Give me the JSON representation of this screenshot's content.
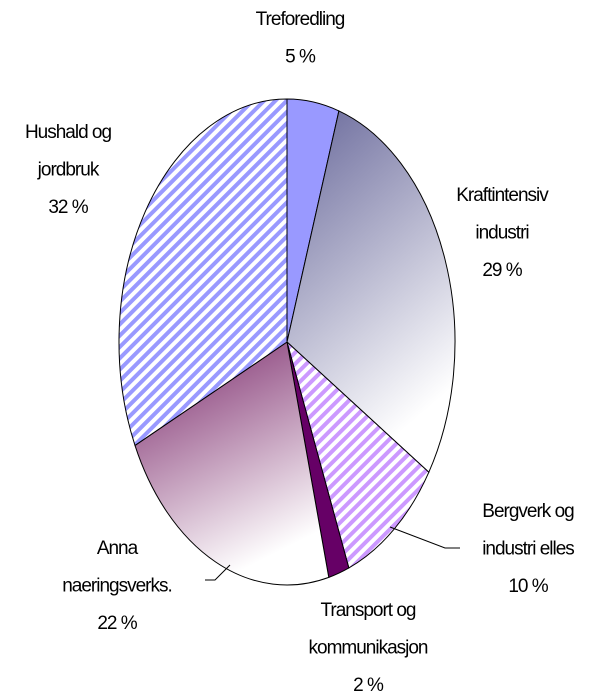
{
  "chart_data": {
    "type": "pie",
    "categories": [
      [
        "Treforedling"
      ],
      [
        "Kraftintensiv",
        "industri"
      ],
      [
        "Bergverk og",
        "industri elles"
      ],
      [
        "Transport og",
        "kommunikasjon"
      ],
      [
        "Anna",
        "naeringsverks."
      ],
      [
        "Hushald og",
        "jordbruk"
      ]
    ],
    "values": [
      5,
      29,
      10,
      2,
      22,
      32
    ],
    "value_labels": [
      "5 %",
      "29 %",
      "10 %",
      "2 %",
      "22 %",
      "32 %"
    ],
    "colors": [
      "#9999ff",
      "#666699",
      "#cc99ff",
      "#660066",
      "#772266",
      "#9999ff"
    ],
    "fill_styles": [
      "solid",
      "gradient",
      "hatch",
      "solid",
      "gradient",
      "hatch"
    ]
  }
}
